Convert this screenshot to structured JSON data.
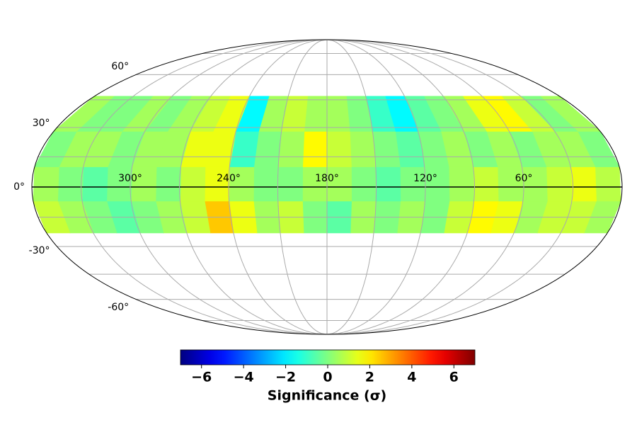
{
  "chart_data": {
    "type": "mollweide",
    "colormap": "jet",
    "xticks": [
      {
        "value": 300,
        "label": "300°"
      },
      {
        "value": 240,
        "label": "240°"
      },
      {
        "value": 180,
        "label": "180°"
      },
      {
        "value": 120,
        "label": "120°"
      },
      {
        "value": 60,
        "label": "60°"
      }
    ],
    "yticks": [
      {
        "value": 60,
        "label": "60°"
      },
      {
        "value": 30,
        "label": "30°"
      },
      {
        "value": 0,
        "label": "0°"
      },
      {
        "value": -30,
        "label": "-30°"
      },
      {
        "value": -60,
        "label": "-60°"
      }
    ],
    "lon_gridlines": [
      30,
      60,
      90,
      120,
      150,
      180,
      210,
      240,
      270,
      300,
      330
    ],
    "lat_gridlines": [
      -75,
      -60,
      -45,
      -30,
      -15,
      0,
      15,
      30,
      45,
      60,
      75
    ],
    "ra_edges": [
      0,
      15,
      30,
      45,
      60,
      75,
      90,
      105,
      120,
      135,
      150,
      165,
      180,
      195,
      210,
      225,
      240,
      255,
      270,
      285,
      300,
      315,
      330,
      345,
      360
    ],
    "dec_edges": [
      -23,
      -7,
      10,
      28,
      47
    ],
    "significance": [
      [
        0.5,
        1,
        1,
        0.5,
        1.5,
        1.8,
        1,
        0,
        0.5,
        0,
        0.5,
        -0.5,
        0,
        1,
        0.5,
        1.5,
        2.5,
        1,
        0.5,
        0,
        -0.5,
        0,
        0.5,
        1
      ],
      [
        0.8,
        1.5,
        1,
        0.5,
        0.5,
        1,
        0.5,
        0,
        0,
        -0.5,
        0,
        0.5,
        0.5,
        0,
        0,
        0.5,
        1.5,
        1,
        0,
        0.5,
        0,
        -0.5,
        0,
        0.5
      ],
      [
        0,
        0.5,
        0.5,
        0,
        0.5,
        0,
        0.5,
        0,
        -0.5,
        0,
        0.5,
        1,
        1.8,
        0.5,
        0,
        -1,
        1.5,
        1.5,
        0.5,
        0.5,
        0,
        0.5,
        0.5,
        0
      ],
      [
        0.5,
        0,
        1,
        1.8,
        1.5,
        0.5,
        0,
        -0.5,
        -1.8,
        -1,
        0,
        0.5,
        0.5,
        1,
        0.5,
        -1.8,
        1.5,
        1,
        0.5,
        0,
        0.5,
        0,
        0,
        0.5
      ]
    ],
    "colorbar": {
      "label": "Significance (σ)",
      "clim": [
        -7,
        7
      ],
      "ticks": [
        {
          "value": -6,
          "label": "−6"
        },
        {
          "value": -4,
          "label": "−4"
        },
        {
          "value": -2,
          "label": "−2"
        },
        0,
        2,
        4,
        6
      ]
    }
  }
}
